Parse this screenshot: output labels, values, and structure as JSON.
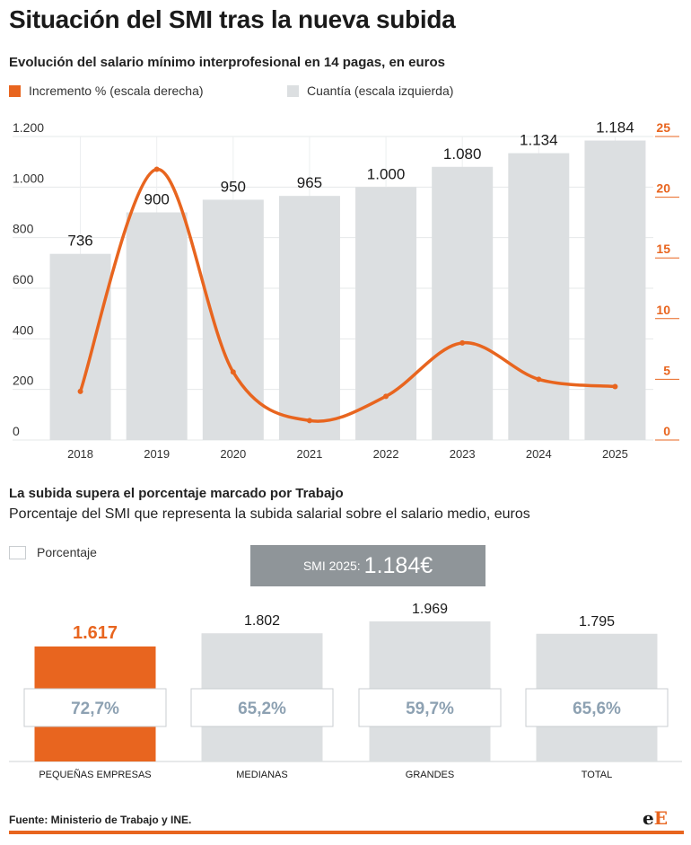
{
  "title": "Situación del SMI tras la nueva subida",
  "chart_data": [
    {
      "type": "bar",
      "title": "Evolución del salario mínimo interprofesional en 14 pagas, en euros",
      "categories": [
        "2018",
        "2019",
        "2020",
        "2021",
        "2022",
        "2023",
        "2024",
        "2025"
      ],
      "series": [
        {
          "name": "Cuantía (escala izquierda)",
          "type": "bar",
          "axis": "left",
          "values": [
            736,
            900,
            950,
            965,
            1000,
            1080,
            1134,
            1184
          ],
          "labels": [
            "736",
            "900",
            "950",
            "965",
            "1.000",
            "1.080",
            "1.134",
            "1.184"
          ],
          "color": "#dcdfe1"
        },
        {
          "name": "Incremento % (escala derecha)",
          "type": "line",
          "axis": "right",
          "values": [
            4.0,
            22.3,
            5.6,
            1.6,
            3.6,
            8.0,
            5.0,
            4.4
          ],
          "color": "#e8651f"
        }
      ],
      "y_left": {
        "ylim": [
          0,
          1200
        ],
        "ticks": [
          0,
          200,
          400,
          600,
          800,
          1000,
          1200
        ],
        "tick_labels": [
          "0",
          "200",
          "400",
          "600",
          "800",
          "1.000",
          "1.200"
        ]
      },
      "y_right": {
        "ylim": [
          0,
          25
        ],
        "ticks": [
          0,
          5,
          10,
          15,
          20,
          25
        ],
        "tick_labels": [
          "0",
          "5",
          "10",
          "15",
          "20",
          "25"
        ]
      },
      "grid": true,
      "legend": "top-left"
    },
    {
      "type": "bar",
      "title": "La subida supera el porcentaje marcado por Trabajo",
      "subtitle": "Porcentaje del SMI que representa la subida salarial sobre el salario medio, euros",
      "categories": [
        "PEQUEÑAS EMPRESAS",
        "MEDIANAS",
        "GRANDES",
        "TOTAL"
      ],
      "values": [
        1617,
        1802,
        1969,
        1795
      ],
      "value_labels": [
        "1.617",
        "1.802",
        "1.969",
        "1.795"
      ],
      "percent_labels": [
        "72,7%",
        "65,2%",
        "59,7%",
        "65,6%"
      ],
      "ylim": [
        0,
        2000
      ],
      "legend_label": "Porcentaje",
      "highlight_color": "#e8651f",
      "bar_color": "#dcdfe1",
      "banner": {
        "label": "SMI 2025:",
        "value": "1.184€"
      }
    }
  ],
  "colors": {
    "orange": "#e8651f",
    "gray_bar": "#dcdfe1",
    "banner": "#8f9599",
    "pct_text": "#8da1b2"
  },
  "footer": {
    "source": "Fuente: Ministerio de Trabajo y INE.",
    "logo_e1": "e",
    "logo_e2": "E"
  }
}
